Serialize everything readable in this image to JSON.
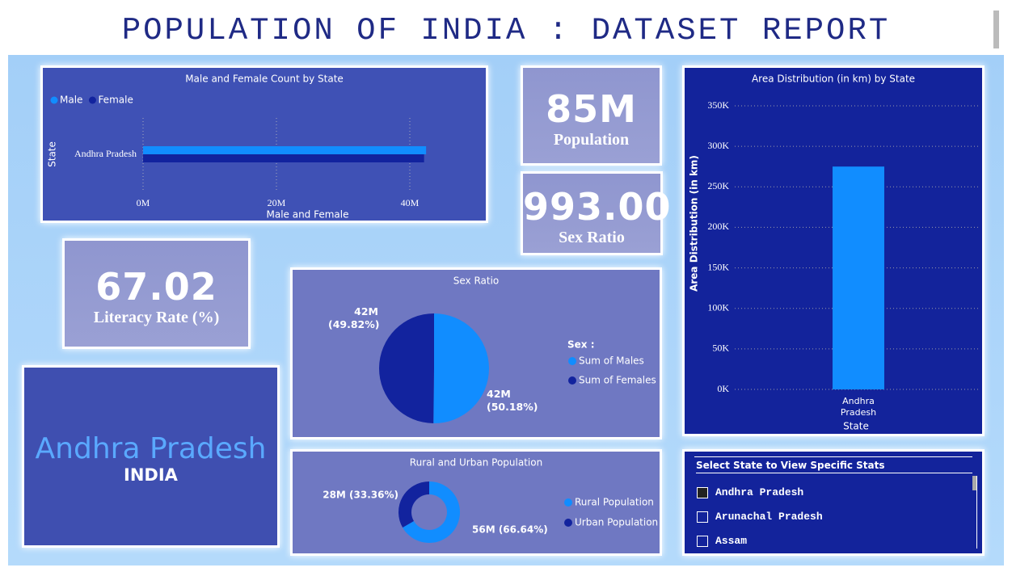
{
  "header": {
    "title": "POPULATION OF INDIA : DATASET REPORT"
  },
  "cards": [
    {
      "value": "85M",
      "label": "Population"
    },
    {
      "value": "993.00",
      "label": "Sex Ratio"
    },
    {
      "value": "67.02",
      "label": "Literacy Rate (%)"
    },
    {
      "state": "Andhra Pradesh",
      "country": "INDIA"
    }
  ],
  "chart_data": [
    {
      "type": "bar",
      "orientation": "horizontal",
      "title": "Male and Female Count by State",
      "categories": [
        "Andhra Pradesh"
      ],
      "series": [
        {
          "name": "Male",
          "color": "#118dff",
          "values": [
            42442146
          ]
        },
        {
          "name": "Female",
          "color": "#12239e",
          "values": [
            42138631
          ]
        }
      ],
      "x_label": "Male and Female",
      "y_label": "State",
      "xlim": [
        0,
        44000000
      ],
      "xticks": [
        {
          "value": 0,
          "label": "0M"
        },
        {
          "value": 20000000,
          "label": "20M"
        },
        {
          "value": 40000000,
          "label": "40M"
        }
      ],
      "grid": true
    },
    {
      "type": "pie",
      "title": "Sex Ratio",
      "legend_title": "Sex :",
      "categories": [
        "Sum of Males",
        "Sum of Females"
      ],
      "values": [
        42442146,
        42138631
      ],
      "value_labels": [
        "42M (50.18%)",
        "42M (49.82%)"
      ],
      "colors": [
        "#118dff",
        "#12239e"
      ]
    },
    {
      "type": "donut",
      "title": "Rural and Urban Population",
      "categories": [
        "Rural Population",
        "Urban Population"
      ],
      "values": [
        56361702,
        28219075
      ],
      "value_labels": [
        "56M (66.64%)",
        "28M (33.36%)"
      ],
      "colors": [
        "#118dff",
        "#12239e"
      ]
    },
    {
      "type": "bar",
      "orientation": "vertical",
      "title": "Area Distribution (in km) by State",
      "categories": [
        "Andhra Pradesh"
      ],
      "values": [
        275045
      ],
      "color": "#118dff",
      "x_label": "State",
      "y_label": "Area Distribution (in km)",
      "ylim": [
        0,
        350000
      ],
      "yticks": [
        {
          "value": 0,
          "label": "0K"
        },
        {
          "value": 50000,
          "label": "50K"
        },
        {
          "value": 100000,
          "label": "100K"
        },
        {
          "value": 150000,
          "label": "150K"
        },
        {
          "value": 200000,
          "label": "200K"
        },
        {
          "value": 250000,
          "label": "250K"
        },
        {
          "value": 300000,
          "label": "300K"
        },
        {
          "value": 350000,
          "label": "350K"
        }
      ],
      "grid": true
    }
  ],
  "slicer": {
    "title": "Select State to View Specific Stats",
    "items": [
      {
        "label": "Andhra Pradesh",
        "selected": true
      },
      {
        "label": "Arunachal Pradesh",
        "selected": false
      },
      {
        "label": "Assam",
        "selected": false
      }
    ]
  }
}
